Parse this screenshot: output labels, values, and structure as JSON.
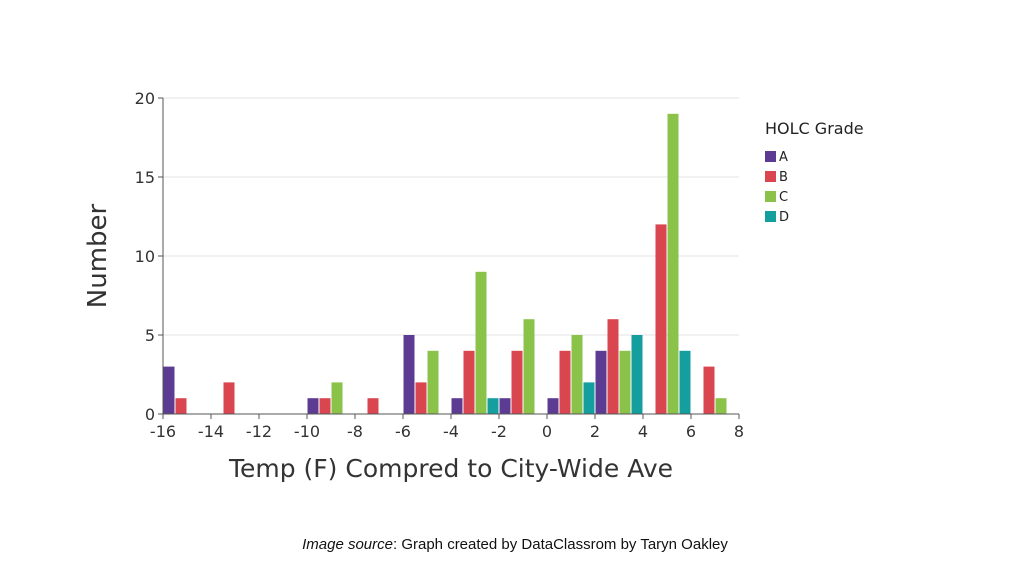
{
  "chart_data": {
    "type": "bar",
    "title": "",
    "xlabel": "Temp (F) Compred to City-Wide Ave",
    "ylabel": "Number",
    "xlim": [
      -16,
      8
    ],
    "ylim": [
      0,
      20
    ],
    "x_ticks": [
      -16,
      -14,
      -12,
      -10,
      -8,
      -6,
      -4,
      -2,
      0,
      2,
      4,
      6,
      8
    ],
    "y_ticks": [
      0,
      5,
      10,
      15,
      20
    ],
    "grid": true,
    "legend": {
      "title": "HOLC Grade",
      "placement": "right"
    },
    "series": [
      {
        "name": "A",
        "color": "#5c3c92",
        "points": [
          {
            "x": -16,
            "y": 3
          },
          {
            "x": -10,
            "y": 1
          },
          {
            "x": -6,
            "y": 5
          },
          {
            "x": -4,
            "y": 1
          },
          {
            "x": -2,
            "y": 1
          },
          {
            "x": 0,
            "y": 1
          },
          {
            "x": 2,
            "y": 4
          }
        ]
      },
      {
        "name": "B",
        "color": "#d9464f",
        "points": [
          {
            "x": -16,
            "y": 1
          },
          {
            "x": -14,
            "y": 2
          },
          {
            "x": -10,
            "y": 1
          },
          {
            "x": -8,
            "y": 1
          },
          {
            "x": -6,
            "y": 2
          },
          {
            "x": -4,
            "y": 4
          },
          {
            "x": -2,
            "y": 4
          },
          {
            "x": 0,
            "y": 4
          },
          {
            "x": 2,
            "y": 6
          },
          {
            "x": 4,
            "y": 12
          },
          {
            "x": 6,
            "y": 3
          }
        ]
      },
      {
        "name": "C",
        "color": "#8bc34a",
        "points": [
          {
            "x": -10,
            "y": 2
          },
          {
            "x": -6,
            "y": 4
          },
          {
            "x": -4,
            "y": 9
          },
          {
            "x": -2,
            "y": 6
          },
          {
            "x": 0,
            "y": 5
          },
          {
            "x": 2,
            "y": 4
          },
          {
            "x": 4,
            "y": 19
          },
          {
            "x": 6,
            "y": 1
          }
        ]
      },
      {
        "name": "D",
        "color": "#159e9e",
        "points": [
          {
            "x": -4,
            "y": 1
          },
          {
            "x": 0,
            "y": 2
          },
          {
            "x": 2,
            "y": 5
          },
          {
            "x": 4,
            "y": 4
          }
        ]
      }
    ]
  },
  "caption": {
    "prefix": "Image source",
    "text": ": Graph created by DataClassrom by Taryn Oakley"
  }
}
